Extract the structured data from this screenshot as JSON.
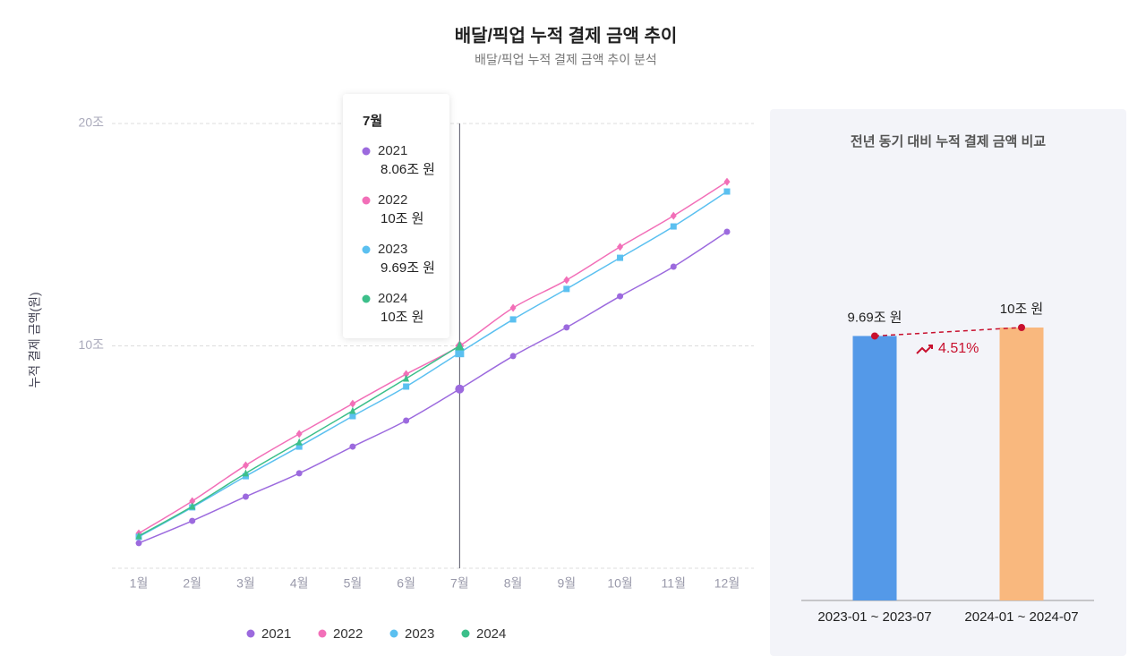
{
  "title": "배달/픽업 누적 결제 금액 추이",
  "subtitle": "배달/픽업 누적 결제 금액 추이 분석",
  "chart_data": [
    {
      "type": "line",
      "ylabel": "누적 결제 금액(원)",
      "categories": [
        "1월",
        "2월",
        "3월",
        "4월",
        "5월",
        "6월",
        "7월",
        "8월",
        "9월",
        "10월",
        "11월",
        "12월"
      ],
      "ylim": [
        0,
        20
      ],
      "yticks": [
        {
          "value": 10,
          "label": "10조"
        },
        {
          "value": 20,
          "label": "20조"
        }
      ],
      "grid": true,
      "legend": "bottom",
      "series": [
        {
          "name": "2021",
          "color": "#9c6ade",
          "marker": "circle",
          "values": [
            1.13,
            2.13,
            3.22,
            4.27,
            5.47,
            6.64,
            8.06,
            9.54,
            10.83,
            12.23,
            13.56,
            15.13
          ]
        },
        {
          "name": "2022",
          "color": "#f26fb8",
          "marker": "diamond",
          "values": [
            1.57,
            3.02,
            4.63,
            6.04,
            7.4,
            8.73,
            10,
            11.71,
            12.96,
            14.45,
            15.85,
            17.38
          ]
        },
        {
          "name": "2023",
          "color": "#5bc0f0",
          "marker": "square",
          "values": [
            1.41,
            2.74,
            4.14,
            5.47,
            6.84,
            8.17,
            9.69,
            11.19,
            12.56,
            13.96,
            15.37,
            16.94
          ]
        },
        {
          "name": "2024",
          "color": "#3cbf8a",
          "marker": "triangle",
          "values": [
            1.45,
            2.78,
            4.27,
            5.67,
            7.08,
            8.53,
            10,
            null,
            null,
            null,
            null,
            null
          ]
        }
      ],
      "hover": "7월",
      "tooltip_labels": [
        "8.06조 원",
        "10조 원",
        "9.69조 원",
        "10조 원"
      ]
    },
    {
      "type": "bar",
      "title": "전년 동기 대비 누적 결제 금액 비교",
      "categories": [
        "2023-01 ~ 2023-07",
        "2024-01 ~ 2024-07"
      ],
      "values": [
        9.69,
        10
      ],
      "value_labels": [
        "9.69조 원",
        "10조 원"
      ],
      "colors": [
        "#5499e8",
        "#f9b87e"
      ],
      "ylim": [
        0,
        22
      ],
      "annotation": "4.51%",
      "annotation_color": "#c8102e"
    }
  ]
}
